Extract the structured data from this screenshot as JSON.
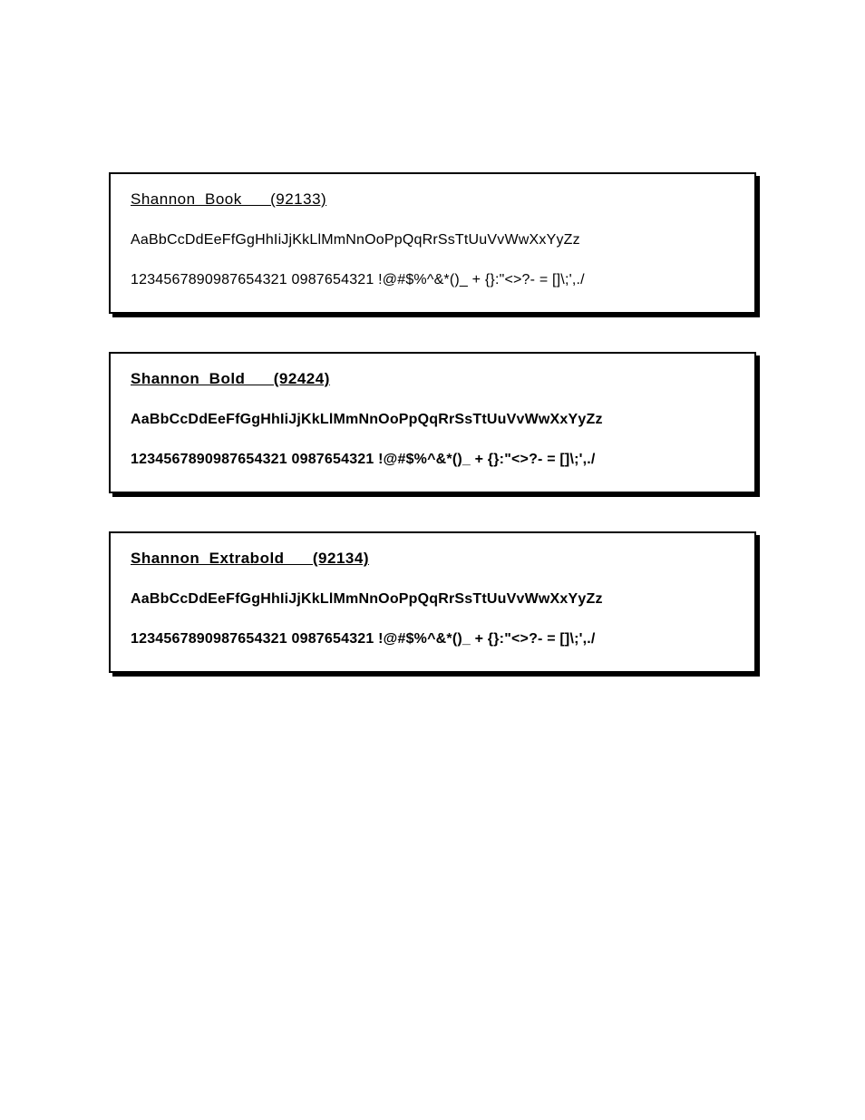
{
  "page": {
    "background_color": "#ffffff",
    "box_border_color": "#000000",
    "box_shadow_color": "#000000",
    "text_color": "#000000"
  },
  "specimens": [
    {
      "title": "Shannon  Book      (92133)",
      "alphabet": "AaBbCcDdEeFfGgHhIiJjKkLlMmNnOoPpQqRrSsTtUuVvWwXxYyZz",
      "chars": "1234567890987654321  0987654321  !@#$%^&*()_ + {}:\"<>?- = []\\;',./",
      "weight_class": "weight-book",
      "font_weight": 400
    },
    {
      "title": "Shannon  Bold      (92424)",
      "alphabet": "AaBbCcDdEeFfGgHhIiJjKkLlMmNnOoPpQqRrSsTtUuVvWwXxYyZz",
      "chars": "1234567890987654321  0987654321  !@#$%^&*()_ + {}:\"<>?- = []\\;',./",
      "weight_class": "weight-bold",
      "font_weight": 700
    },
    {
      "title": "Shannon  Extrabold      (92134)",
      "alphabet": "AaBbCcDdEeFfGgHhIiJjKkLlMmNnOoPpQqRrSsTtUuVvWwXxYyZz",
      "chars": "1234567890987654321  0987654321  !@#$%^&*()_ + {}:\"<>?- = []\\;',./",
      "weight_class": "weight-extrabold",
      "font_weight": 900
    }
  ]
}
